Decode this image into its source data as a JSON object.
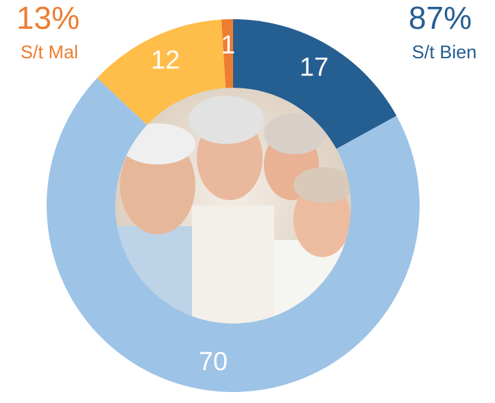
{
  "chart_data": {
    "type": "donut",
    "values": [
      17,
      70,
      12,
      1
    ],
    "colors": [
      "#255e91",
      "#9dc3e6",
      "#ffbe4a",
      "#ed7d31"
    ],
    "summary": [
      {
        "name": "S/t Mal",
        "value": 13,
        "value_label": "13%",
        "color": "#ed7d31"
      },
      {
        "name": "S/t Bien",
        "value": 87,
        "value_label": "87%",
        "color": "#255e91"
      }
    ]
  }
}
